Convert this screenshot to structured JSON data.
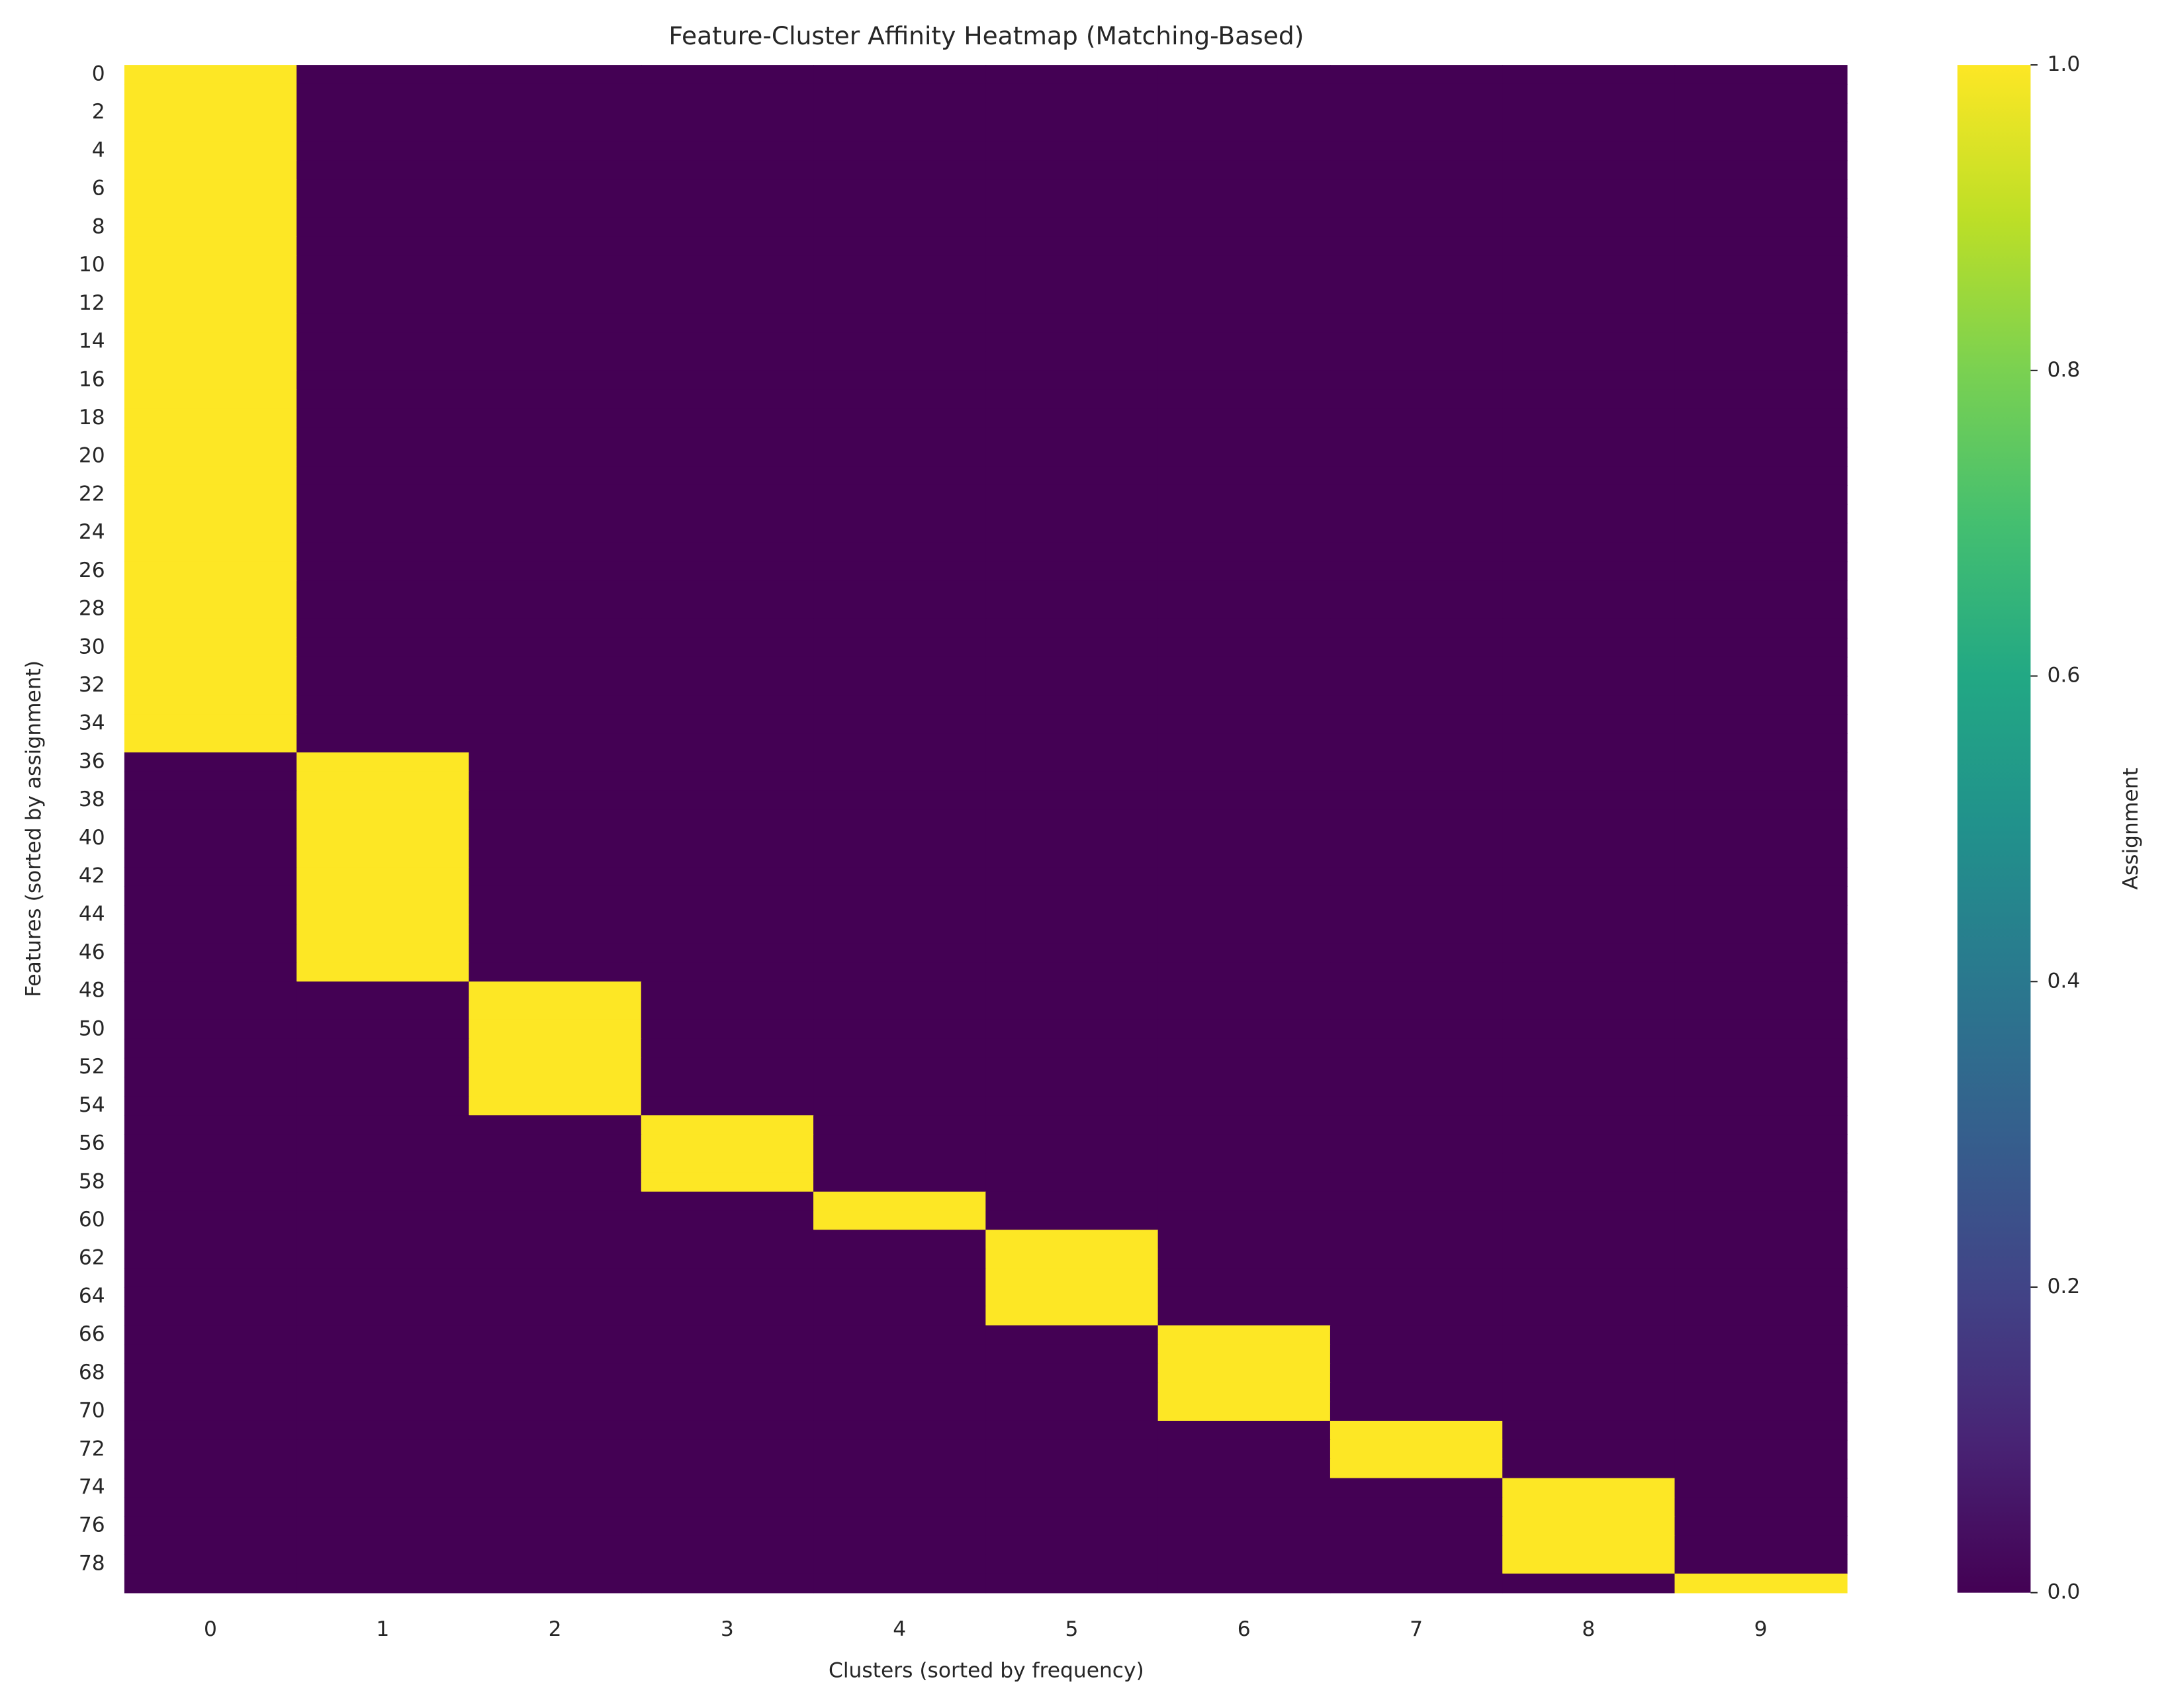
{
  "chart_data": {
    "type": "heatmap",
    "title": "Feature-Cluster Affinity Heatmap (Matching-Based)",
    "x_label": "Clusters (sorted by frequency)",
    "y_label": "Features (sorted by assignment)",
    "x_categories": [
      0,
      1,
      2,
      3,
      4,
      5,
      6,
      7,
      8,
      9
    ],
    "y_categories": [
      0,
      null,
      2,
      null,
      4,
      null,
      6,
      null,
      8,
      null,
      10,
      null,
      12,
      null,
      14,
      null,
      16,
      null,
      18,
      null,
      20,
      null,
      22,
      null,
      24,
      null,
      26,
      null,
      28,
      null,
      30,
      null,
      32,
      null,
      34,
      null,
      36,
      null,
      38,
      null,
      40,
      null,
      42,
      null,
      44,
      null,
      46,
      null,
      48,
      null,
      50,
      null,
      52,
      null,
      54,
      null,
      56,
      null,
      58,
      null,
      60,
      null,
      62,
      null,
      64,
      null,
      66,
      null,
      68,
      null,
      70,
      null,
      72,
      null,
      74,
      null,
      76,
      null,
      78,
      null
    ],
    "colormap": "viridis",
    "colorbar": {
      "label": "Assignment",
      "lim": [
        0,
        1
      ],
      "ticks": [
        {
          "value": 0,
          "label": "0.0"
        },
        {
          "value": 0.2,
          "label": "0.2"
        },
        {
          "value": 0.4,
          "label": "0.4"
        },
        {
          "value": 0.6,
          "label": "0.6"
        },
        {
          "value": 0.8,
          "label": "0.8"
        },
        {
          "value": 1,
          "label": "1.0"
        }
      ]
    },
    "values": [
      [
        1,
        0,
        0,
        0,
        0,
        0,
        0,
        0,
        0,
        0
      ],
      [
        1,
        0,
        0,
        0,
        0,
        0,
        0,
        0,
        0,
        0
      ],
      [
        1,
        0,
        0,
        0,
        0,
        0,
        0,
        0,
        0,
        0
      ],
      [
        1,
        0,
        0,
        0,
        0,
        0,
        0,
        0,
        0,
        0
      ],
      [
        1,
        0,
        0,
        0,
        0,
        0,
        0,
        0,
        0,
        0
      ],
      [
        1,
        0,
        0,
        0,
        0,
        0,
        0,
        0,
        0,
        0
      ],
      [
        1,
        0,
        0,
        0,
        0,
        0,
        0,
        0,
        0,
        0
      ],
      [
        1,
        0,
        0,
        0,
        0,
        0,
        0,
        0,
        0,
        0
      ],
      [
        1,
        0,
        0,
        0,
        0,
        0,
        0,
        0,
        0,
        0
      ],
      [
        1,
        0,
        0,
        0,
        0,
        0,
        0,
        0,
        0,
        0
      ],
      [
        1,
        0,
        0,
        0,
        0,
        0,
        0,
        0,
        0,
        0
      ],
      [
        1,
        0,
        0,
        0,
        0,
        0,
        0,
        0,
        0,
        0
      ],
      [
        1,
        0,
        0,
        0,
        0,
        0,
        0,
        0,
        0,
        0
      ],
      [
        1,
        0,
        0,
        0,
        0,
        0,
        0,
        0,
        0,
        0
      ],
      [
        1,
        0,
        0,
        0,
        0,
        0,
        0,
        0,
        0,
        0
      ],
      [
        1,
        0,
        0,
        0,
        0,
        0,
        0,
        0,
        0,
        0
      ],
      [
        1,
        0,
        0,
        0,
        0,
        0,
        0,
        0,
        0,
        0
      ],
      [
        1,
        0,
        0,
        0,
        0,
        0,
        0,
        0,
        0,
        0
      ],
      [
        1,
        0,
        0,
        0,
        0,
        0,
        0,
        0,
        0,
        0
      ],
      [
        1,
        0,
        0,
        0,
        0,
        0,
        0,
        0,
        0,
        0
      ],
      [
        1,
        0,
        0,
        0,
        0,
        0,
        0,
        0,
        0,
        0
      ],
      [
        1,
        0,
        0,
        0,
        0,
        0,
        0,
        0,
        0,
        0
      ],
      [
        1,
        0,
        0,
        0,
        0,
        0,
        0,
        0,
        0,
        0
      ],
      [
        1,
        0,
        0,
        0,
        0,
        0,
        0,
        0,
        0,
        0
      ],
      [
        1,
        0,
        0,
        0,
        0,
        0,
        0,
        0,
        0,
        0
      ],
      [
        1,
        0,
        0,
        0,
        0,
        0,
        0,
        0,
        0,
        0
      ],
      [
        1,
        0,
        0,
        0,
        0,
        0,
        0,
        0,
        0,
        0
      ],
      [
        1,
        0,
        0,
        0,
        0,
        0,
        0,
        0,
        0,
        0
      ],
      [
        1,
        0,
        0,
        0,
        0,
        0,
        0,
        0,
        0,
        0
      ],
      [
        1,
        0,
        0,
        0,
        0,
        0,
        0,
        0,
        0,
        0
      ],
      [
        1,
        0,
        0,
        0,
        0,
        0,
        0,
        0,
        0,
        0
      ],
      [
        1,
        0,
        0,
        0,
        0,
        0,
        0,
        0,
        0,
        0
      ],
      [
        1,
        0,
        0,
        0,
        0,
        0,
        0,
        0,
        0,
        0
      ],
      [
        1,
        0,
        0,
        0,
        0,
        0,
        0,
        0,
        0,
        0
      ],
      [
        1,
        0,
        0,
        0,
        0,
        0,
        0,
        0,
        0,
        0
      ],
      [
        1,
        0,
        0,
        0,
        0,
        0,
        0,
        0,
        0,
        0
      ],
      [
        0,
        1,
        0,
        0,
        0,
        0,
        0,
        0,
        0,
        0
      ],
      [
        0,
        1,
        0,
        0,
        0,
        0,
        0,
        0,
        0,
        0
      ],
      [
        0,
        1,
        0,
        0,
        0,
        0,
        0,
        0,
        0,
        0
      ],
      [
        0,
        1,
        0,
        0,
        0,
        0,
        0,
        0,
        0,
        0
      ],
      [
        0,
        1,
        0,
        0,
        0,
        0,
        0,
        0,
        0,
        0
      ],
      [
        0,
        1,
        0,
        0,
        0,
        0,
        0,
        0,
        0,
        0
      ],
      [
        0,
        1,
        0,
        0,
        0,
        0,
        0,
        0,
        0,
        0
      ],
      [
        0,
        1,
        0,
        0,
        0,
        0,
        0,
        0,
        0,
        0
      ],
      [
        0,
        1,
        0,
        0,
        0,
        0,
        0,
        0,
        0,
        0
      ],
      [
        0,
        1,
        0,
        0,
        0,
        0,
        0,
        0,
        0,
        0
      ],
      [
        0,
        1,
        0,
        0,
        0,
        0,
        0,
        0,
        0,
        0
      ],
      [
        0,
        1,
        0,
        0,
        0,
        0,
        0,
        0,
        0,
        0
      ],
      [
        0,
        0,
        1,
        0,
        0,
        0,
        0,
        0,
        0,
        0
      ],
      [
        0,
        0,
        1,
        0,
        0,
        0,
        0,
        0,
        0,
        0
      ],
      [
        0,
        0,
        1,
        0,
        0,
        0,
        0,
        0,
        0,
        0
      ],
      [
        0,
        0,
        1,
        0,
        0,
        0,
        0,
        0,
        0,
        0
      ],
      [
        0,
        0,
        1,
        0,
        0,
        0,
        0,
        0,
        0,
        0
      ],
      [
        0,
        0,
        1,
        0,
        0,
        0,
        0,
        0,
        0,
        0
      ],
      [
        0,
        0,
        1,
        0,
        0,
        0,
        0,
        0,
        0,
        0
      ],
      [
        0,
        0,
        0,
        1,
        0,
        0,
        0,
        0,
        0,
        0
      ],
      [
        0,
        0,
        0,
        1,
        0,
        0,
        0,
        0,
        0,
        0
      ],
      [
        0,
        0,
        0,
        1,
        0,
        0,
        0,
        0,
        0,
        0
      ],
      [
        0,
        0,
        0,
        1,
        0,
        0,
        0,
        0,
        0,
        0
      ],
      [
        0,
        0,
        0,
        0,
        1,
        0,
        0,
        0,
        0,
        0
      ],
      [
        0,
        0,
        0,
        0,
        1,
        0,
        0,
        0,
        0,
        0
      ],
      [
        0,
        0,
        0,
        0,
        0,
        1,
        0,
        0,
        0,
        0
      ],
      [
        0,
        0,
        0,
        0,
        0,
        1,
        0,
        0,
        0,
        0
      ],
      [
        0,
        0,
        0,
        0,
        0,
        1,
        0,
        0,
        0,
        0
      ],
      [
        0,
        0,
        0,
        0,
        0,
        1,
        0,
        0,
        0,
        0
      ],
      [
        0,
        0,
        0,
        0,
        0,
        1,
        0,
        0,
        0,
        0
      ],
      [
        0,
        0,
        0,
        0,
        0,
        0,
        1,
        0,
        0,
        0
      ],
      [
        0,
        0,
        0,
        0,
        0,
        0,
        1,
        0,
        0,
        0
      ],
      [
        0,
        0,
        0,
        0,
        0,
        0,
        1,
        0,
        0,
        0
      ],
      [
        0,
        0,
        0,
        0,
        0,
        0,
        1,
        0,
        0,
        0
      ],
      [
        0,
        0,
        0,
        0,
        0,
        0,
        1,
        0,
        0,
        0
      ],
      [
        0,
        0,
        0,
        0,
        0,
        0,
        0,
        1,
        0,
        0
      ],
      [
        0,
        0,
        0,
        0,
        0,
        0,
        0,
        1,
        0,
        0
      ],
      [
        0,
        0,
        0,
        0,
        0,
        0,
        0,
        1,
        0,
        0
      ],
      [
        0,
        0,
        0,
        0,
        0,
        0,
        0,
        0,
        1,
        0
      ],
      [
        0,
        0,
        0,
        0,
        0,
        0,
        0,
        0,
        1,
        0
      ],
      [
        0,
        0,
        0,
        0,
        0,
        0,
        0,
        0,
        1,
        0
      ],
      [
        0,
        0,
        0,
        0,
        0,
        0,
        0,
        0,
        1,
        0
      ],
      [
        0,
        0,
        0,
        0,
        0,
        0,
        0,
        0,
        1,
        0
      ],
      [
        0,
        0,
        0,
        0,
        0,
        0,
        0,
        0,
        0,
        1
      ]
    ]
  }
}
